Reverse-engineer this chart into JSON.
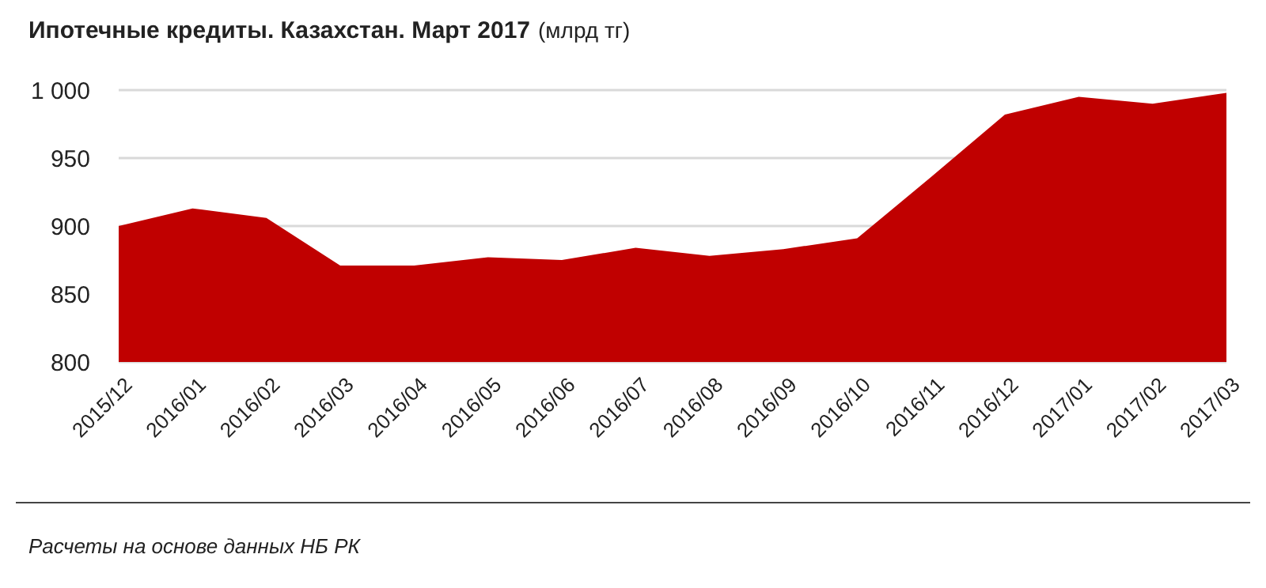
{
  "chart_data": {
    "type": "area",
    "title": "Ипотечные кредиты. Казахстан. Март 2017",
    "subtitle": "(млрд тг)",
    "categories": [
      "2015/12",
      "2016/01",
      "2016/02",
      "2016/03",
      "2016/04",
      "2016/05",
      "2016/06",
      "2016/07",
      "2016/08",
      "2016/09",
      "2016/10",
      "2016/11",
      "2016/12",
      "2017/01",
      "2017/02",
      "2017/03"
    ],
    "series": [
      {
        "color": "#c00000",
        "values": [
          900,
          913,
          906,
          871,
          871,
          877,
          875,
          884,
          878,
          883,
          891,
          936,
          982,
          995,
          990,
          998
        ]
      }
    ],
    "ylim": [
      800,
      1000
    ],
    "yticks": [
      800,
      850,
      900,
      950,
      {
        "value": 1000,
        "label": "1 000"
      }
    ],
    "grid": "y",
    "annotations": [
      "Расчеты на основе данных НБ РК"
    ]
  }
}
